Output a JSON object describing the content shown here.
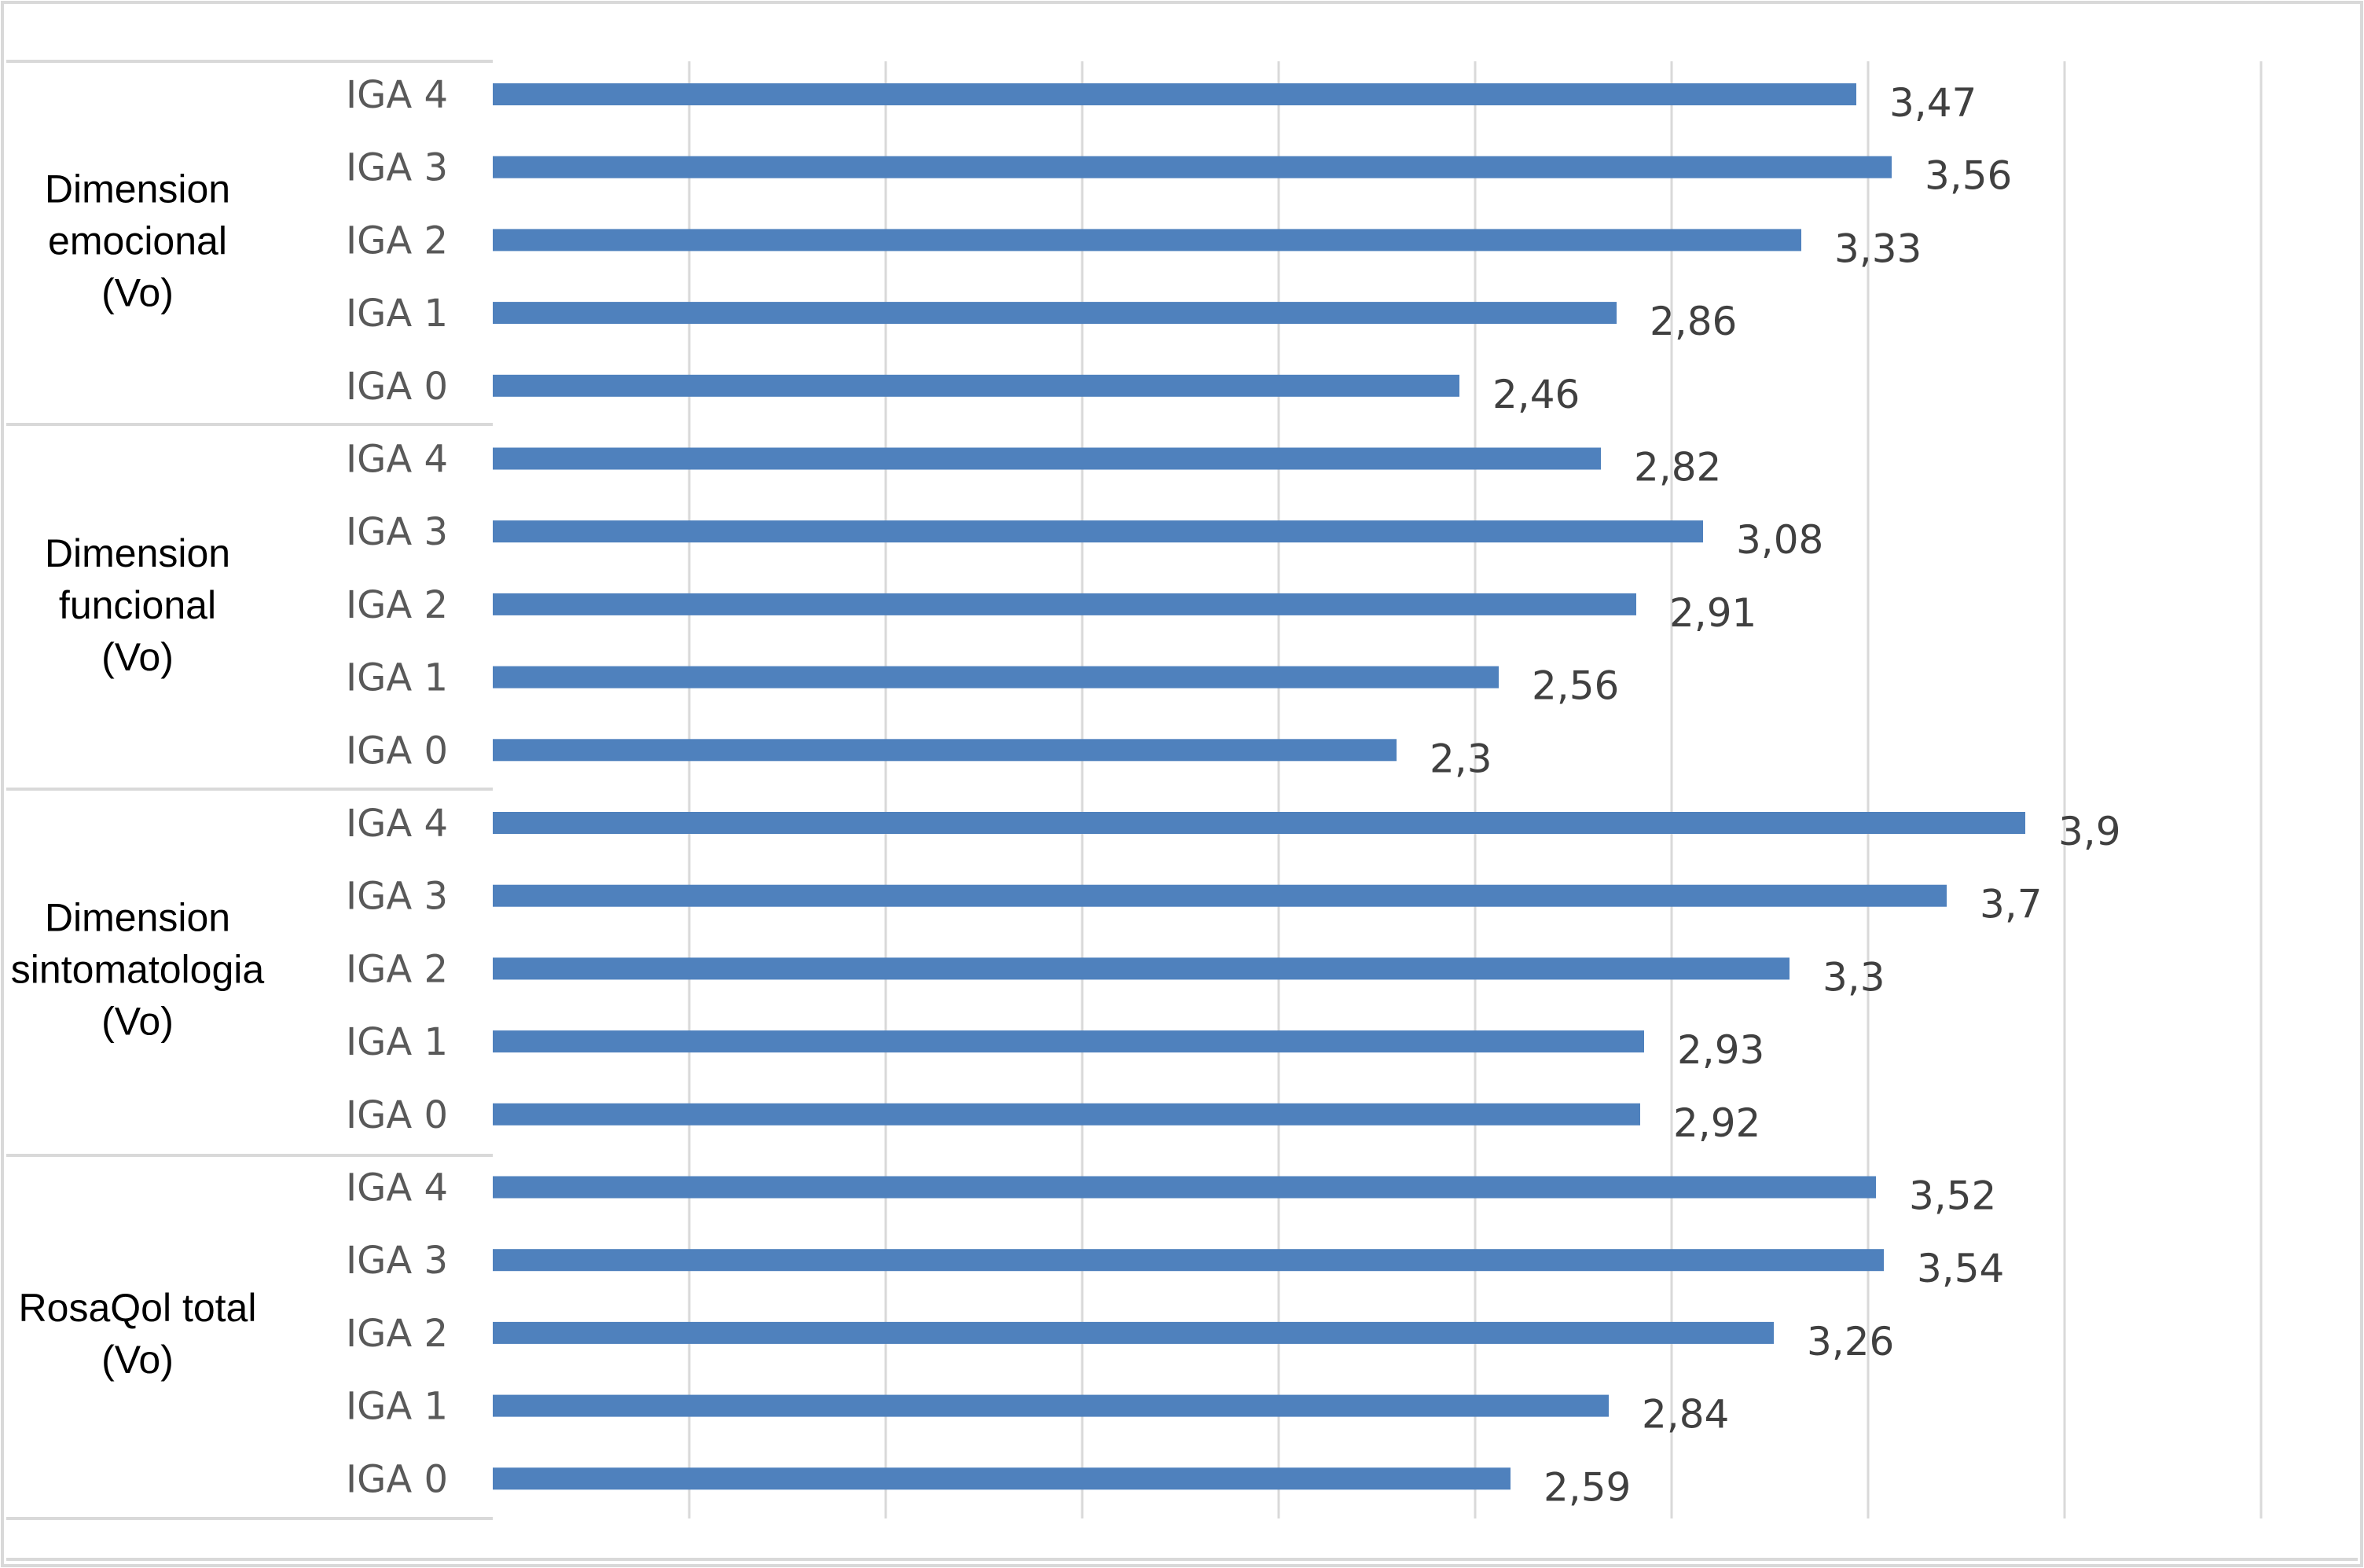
{
  "chart_data": {
    "type": "bar",
    "orientation": "horizontal",
    "grid": true,
    "legend": "none",
    "xlim": [
      0,
      4.5
    ],
    "bar_color": "#4F81BD",
    "groups": [
      {
        "label_lines": [
          "Dimension",
          "emocional",
          "(Vo)"
        ],
        "items": [
          {
            "category": "IGA 4",
            "value": 3.47,
            "label": "3,47"
          },
          {
            "category": "IGA 3",
            "value": 3.56,
            "label": "3,56"
          },
          {
            "category": "IGA 2",
            "value": 3.33,
            "label": "3,33"
          },
          {
            "category": "IGA 1",
            "value": 2.86,
            "label": "2,86"
          },
          {
            "category": "IGA 0",
            "value": 2.46,
            "label": "2,46"
          }
        ]
      },
      {
        "label_lines": [
          "Dimension",
          "funcional",
          "(Vo)"
        ],
        "items": [
          {
            "category": "IGA 4",
            "value": 2.82,
            "label": "2,82"
          },
          {
            "category": "IGA 3",
            "value": 3.08,
            "label": "3,08"
          },
          {
            "category": "IGA 2",
            "value": 2.91,
            "label": "2,91"
          },
          {
            "category": "IGA 1",
            "value": 2.56,
            "label": "2,56"
          },
          {
            "category": "IGA 0",
            "value": 2.3,
            "label": "2,3"
          }
        ]
      },
      {
        "label_lines": [
          "Dimension",
          "sintomatologia",
          "(Vo)"
        ],
        "items": [
          {
            "category": "IGA 4",
            "value": 3.9,
            "label": "3,9"
          },
          {
            "category": "IGA 3",
            "value": 3.7,
            "label": "3,7"
          },
          {
            "category": "IGA 2",
            "value": 3.3,
            "label": "3,3"
          },
          {
            "category": "IGA 1",
            "value": 2.93,
            "label": "2,93"
          },
          {
            "category": "IGA 0",
            "value": 2.92,
            "label": "2,92"
          }
        ]
      },
      {
        "label_lines": [
          "RosaQol total",
          "(Vo)"
        ],
        "items": [
          {
            "category": "IGA 4",
            "value": 3.52,
            "label": "3,52"
          },
          {
            "category": "IGA 3",
            "value": 3.54,
            "label": "3,54"
          },
          {
            "category": "IGA 2",
            "value": 3.26,
            "label": "3,26"
          },
          {
            "category": "IGA 1",
            "value": 2.84,
            "label": "2,84"
          },
          {
            "category": "IGA 0",
            "value": 2.59,
            "label": "2,59"
          }
        ]
      }
    ]
  }
}
